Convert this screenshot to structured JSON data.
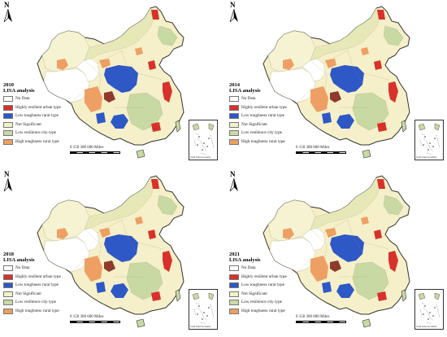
{
  "north_label": "N",
  "colors": {
    "no_data": "#ffffff",
    "highly_resilient_urban": "#d8312b",
    "low_toughness_rural": "#2e58c6",
    "not_significant": "#f3f3c6",
    "low_resilience_city": "#c9d9a4",
    "high_toughness_rural": "#ee9f63",
    "background_region": "#f5f0c9",
    "boundary": "#333333"
  },
  "scale_numbers": "0  150 300      600 Miles",
  "inset_caption": "South China Sea Islands",
  "panels": [
    {
      "year": "2010",
      "subtitle": "LISA analysis",
      "legend": [
        {
          "label": "No Data",
          "color": "#ffffff"
        },
        {
          "label": "Highly resilient urban type",
          "color": "#d8312b"
        },
        {
          "label": "Low toughness rural type",
          "color": "#2e58c6"
        },
        {
          "label": "Not Significant",
          "color": "#f3f3c6"
        },
        {
          "label": "Low resilience city type",
          "color": "#c9d9a4"
        },
        {
          "label": "High toughness rural type",
          "color": "#ee9f63"
        }
      ]
    },
    {
      "year": "2014",
      "subtitle": "LISA analysis",
      "legend": [
        {
          "label": "No Data",
          "color": "#ffffff"
        },
        {
          "label": "Highly resilient urban type",
          "color": "#d8312b"
        },
        {
          "label": "Low toughness rural type",
          "color": "#2e58c6"
        },
        {
          "label": "Not Significant",
          "color": "#f3f3c6"
        },
        {
          "label": "Low resilience city type",
          "color": "#c9d9a4"
        },
        {
          "label": "High toughness rural type",
          "color": "#ee9f63"
        }
      ]
    },
    {
      "year": "2018",
      "subtitle": "LISA analysis",
      "legend": [
        {
          "label": "No Data",
          "color": "#ffffff"
        },
        {
          "label": "Highly resilient urban type",
          "color": "#d8312b"
        },
        {
          "label": "Low toughness rural type",
          "color": "#2e58c6"
        },
        {
          "label": "Not Significant",
          "color": "#f3f3c6"
        },
        {
          "label": "Low resilience city type",
          "color": "#c9d9a4"
        },
        {
          "label": "High toughness rural type",
          "color": "#ee9f63"
        }
      ]
    },
    {
      "year": "2021",
      "subtitle": "LISA analysis",
      "legend": [
        {
          "label": "No Data",
          "color": "#ffffff"
        },
        {
          "label": "Highly resilient urban type",
          "color": "#d8312b"
        },
        {
          "label": "Low toughness rural type",
          "color": "#2e58c6"
        },
        {
          "label": "Not Significant",
          "color": "#f3f3c6"
        },
        {
          "label": "Low resilience city type",
          "color": "#c9d9a4"
        },
        {
          "label": "High toughness rural type",
          "color": "#ee9f63"
        }
      ]
    }
  ]
}
